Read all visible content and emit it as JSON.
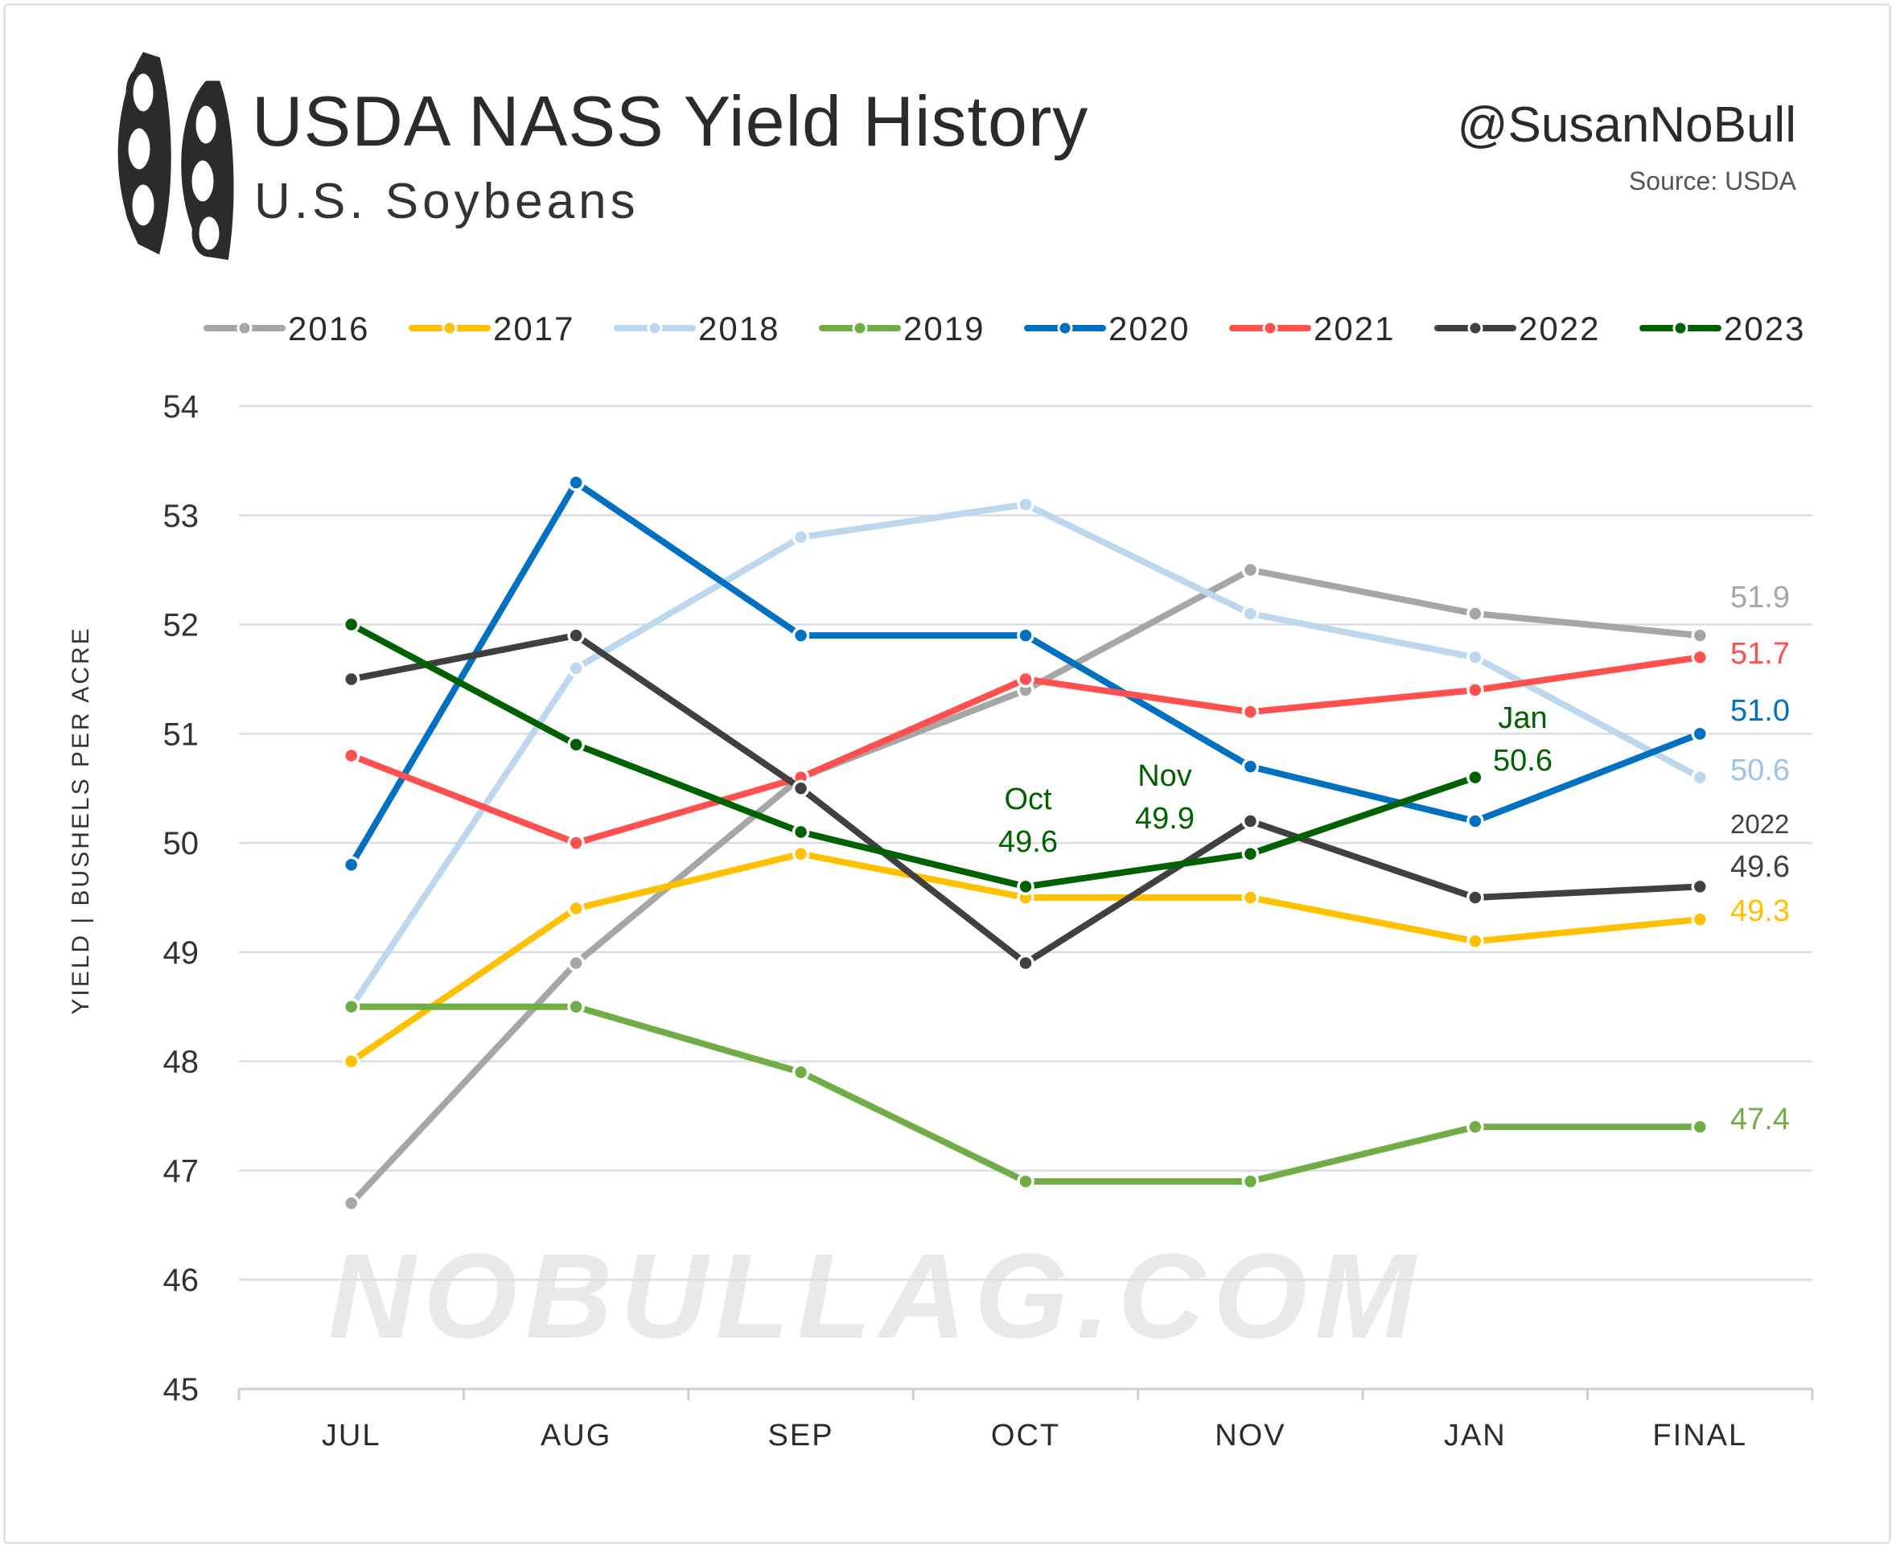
{
  "header": {
    "title": "USDA NASS Yield History",
    "subtitle": "U.S. Soybeans",
    "handle": "@SusanNoBull",
    "source": "Source: USDA",
    "watermark": "NOBULLAG.COM"
  },
  "chart_data": {
    "type": "line",
    "title": "USDA NASS Yield History",
    "subtitle": "U.S. Soybeans",
    "xlabel": "",
    "ylabel": "YIELD | BUSHELS PER ACRE",
    "categories": [
      "JUL",
      "AUG",
      "SEP",
      "OCT",
      "NOV",
      "JAN",
      "FINAL"
    ],
    "ylim": [
      45,
      54
    ],
    "yticks": [
      "45",
      "46",
      "47",
      "48",
      "49",
      "50",
      "51",
      "52",
      "53",
      "54"
    ],
    "grid": true,
    "legend_position": "top",
    "series": [
      {
        "name": "2016",
        "color": "#a6a6a6",
        "values": [
          46.7,
          48.9,
          50.6,
          51.4,
          52.5,
          52.1,
          51.9
        ],
        "end_label": "51.9"
      },
      {
        "name": "2017",
        "color": "#ffc000",
        "values": [
          48.0,
          49.4,
          49.9,
          49.5,
          49.5,
          49.1,
          49.3
        ],
        "end_label": "49.3"
      },
      {
        "name": "2018",
        "color": "#bdd7ee",
        "values": [
          48.5,
          51.6,
          52.8,
          53.1,
          52.1,
          51.7,
          50.6
        ],
        "end_label": "50.6"
      },
      {
        "name": "2019",
        "color": "#70ad47",
        "values": [
          48.5,
          48.5,
          47.9,
          46.9,
          46.9,
          47.4,
          47.4
        ],
        "end_label": "47.4"
      },
      {
        "name": "2020",
        "color": "#0070c0",
        "values": [
          49.8,
          53.3,
          51.9,
          51.9,
          50.7,
          50.2,
          51.0
        ],
        "end_label": "51.0"
      },
      {
        "name": "2021",
        "color": "#ff5050",
        "values": [
          50.8,
          50.0,
          50.6,
          51.5,
          51.2,
          51.4,
          51.7
        ],
        "end_label": "51.7"
      },
      {
        "name": "2022",
        "color": "#404040",
        "values": [
          51.5,
          51.9,
          50.5,
          48.9,
          50.2,
          49.5,
          49.6
        ],
        "end_label": "49.6",
        "end_caption": "2022"
      },
      {
        "name": "2023",
        "color": "#006100",
        "values": [
          52.0,
          50.9,
          50.1,
          49.6,
          49.9,
          50.6,
          null
        ]
      }
    ],
    "annotations": [
      {
        "series": "2023",
        "category": "OCT",
        "month": "Oct",
        "value": "49.6"
      },
      {
        "series": "2023",
        "category": "NOV",
        "month": "Nov",
        "value": "49.9"
      },
      {
        "series": "2023",
        "category": "JAN",
        "month": "Jan",
        "value": "50.6"
      }
    ]
  }
}
